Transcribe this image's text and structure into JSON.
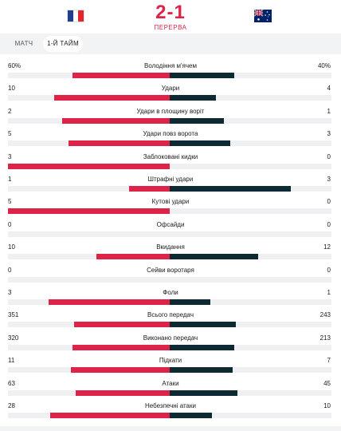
{
  "match": {
    "score": "2-1",
    "status": "ПЕРЕРВА",
    "home_flag": {
      "icon": "france-flag-icon",
      "colors": [
        "#1f3e8f",
        "#ffffff",
        "#e4262c"
      ]
    },
    "away_flag": {
      "icon": "australia-flag-icon",
      "colors": [
        "#012169",
        "#ffffff",
        "#c8102e"
      ]
    }
  },
  "tabs": [
    {
      "label": "МАТЧ",
      "active": false
    },
    {
      "label": "1-Й ТАЙМ",
      "active": true
    }
  ],
  "colors": {
    "home": "#dd2448",
    "away": "#0d2a32",
    "track": "#eef0f2"
  },
  "stats": [
    {
      "label": "Володіння м'ячем",
      "home": "60%",
      "away": "40%",
      "home_value": 60,
      "away_value": 40
    },
    {
      "label": "Удари",
      "home": "10",
      "away": "4",
      "home_value": 10,
      "away_value": 4
    },
    {
      "label": "Удари в площину воріт",
      "home": "2",
      "away": "1",
      "home_value": 2,
      "away_value": 1
    },
    {
      "label": "Удари повз ворота",
      "home": "5",
      "away": "3",
      "home_value": 5,
      "away_value": 3
    },
    {
      "label": "Заблоковані кидки",
      "home": "3",
      "away": "0",
      "home_value": 3,
      "away_value": 0
    },
    {
      "label": "Штрафні удари",
      "home": "1",
      "away": "3",
      "home_value": 1,
      "away_value": 3
    },
    {
      "label": "Кутові удари",
      "home": "5",
      "away": "0",
      "home_value": 5,
      "away_value": 0
    },
    {
      "label": "Офсайди",
      "home": "0",
      "away": "0",
      "home_value": 0,
      "away_value": 0
    },
    {
      "label": "Вкидання",
      "home": "10",
      "away": "12",
      "home_value": 10,
      "away_value": 12
    },
    {
      "label": "Сейви воротаря",
      "home": "0",
      "away": "0",
      "home_value": 0,
      "away_value": 0
    },
    {
      "label": "Фоли",
      "home": "3",
      "away": "1",
      "home_value": 3,
      "away_value": 1
    },
    {
      "label": "Всього передач",
      "home": "351",
      "away": "243",
      "home_value": 351,
      "away_value": 243
    },
    {
      "label": "Виконано передач",
      "home": "320",
      "away": "213",
      "home_value": 320,
      "away_value": 213
    },
    {
      "label": "Підкати",
      "home": "11",
      "away": "7",
      "home_value": 11,
      "away_value": 7
    },
    {
      "label": "Атаки",
      "home": "63",
      "away": "45",
      "home_value": 63,
      "away_value": 45
    },
    {
      "label": "Небезпечні атаки",
      "home": "28",
      "away": "10",
      "home_value": 28,
      "away_value": 10
    }
  ]
}
